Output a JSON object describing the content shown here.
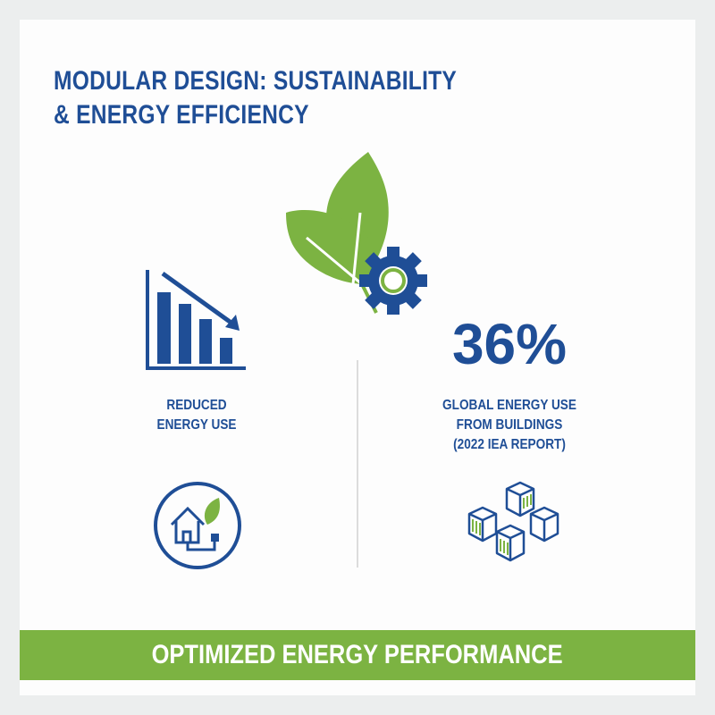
{
  "title": {
    "line1": "MODULAR DESIGN: SUSTAINABILITY",
    "line2": "& ENERGY EFFICIENCY"
  },
  "left": {
    "label_line1": "REDUCED",
    "label_line2": "ENERGY USE",
    "icon": "bar-chart-down-icon",
    "bottom_icon": "house-leaf-plug-icon"
  },
  "center": {
    "icon": "leaf-gear-icon"
  },
  "right": {
    "stat": "36%",
    "label_line1": "GLOBAL ENERGY USE",
    "label_line2": "FROM BUILDINGS",
    "label_line3": "(2022 IEA REPORT)",
    "bottom_icon": "modular-cubes-icon"
  },
  "banner": {
    "text": "OPTIMIZED ENERGY PERFORMANCE"
  },
  "colors": {
    "blue": "#1f4e96",
    "green": "#7cb342",
    "background": "#eceeee"
  }
}
